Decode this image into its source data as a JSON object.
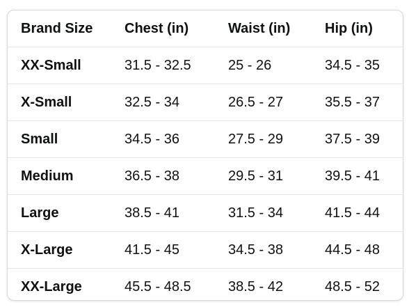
{
  "table": {
    "headers": [
      "Brand Size",
      "Chest (in)",
      "Waist (in)",
      "Hip (in)"
    ],
    "rows": [
      [
        "XX-Small",
        "31.5 - 32.5",
        "25 - 26",
        "34.5 - 35"
      ],
      [
        "X-Small",
        "32.5 - 34",
        "26.5 - 27",
        "35.5 - 37"
      ],
      [
        "Small",
        "34.5 - 36",
        "27.5 - 29",
        "37.5 - 39"
      ],
      [
        "Medium",
        "36.5 - 38",
        "29.5 - 31",
        "39.5 - 41"
      ],
      [
        "Large",
        "38.5 - 41",
        "31.5 - 34",
        "41.5 - 44"
      ],
      [
        "X-Large",
        "41.5 - 45",
        "34.5 - 38",
        "44.5 - 48"
      ],
      [
        "XX-Large",
        "45.5 - 48.5",
        "38.5 - 42",
        "48.5 - 52"
      ]
    ]
  },
  "colors": {
    "text": "#0f1111",
    "border": "#d5d9d9",
    "row_divider": "#e3e6e6",
    "background": "#ffffff"
  }
}
